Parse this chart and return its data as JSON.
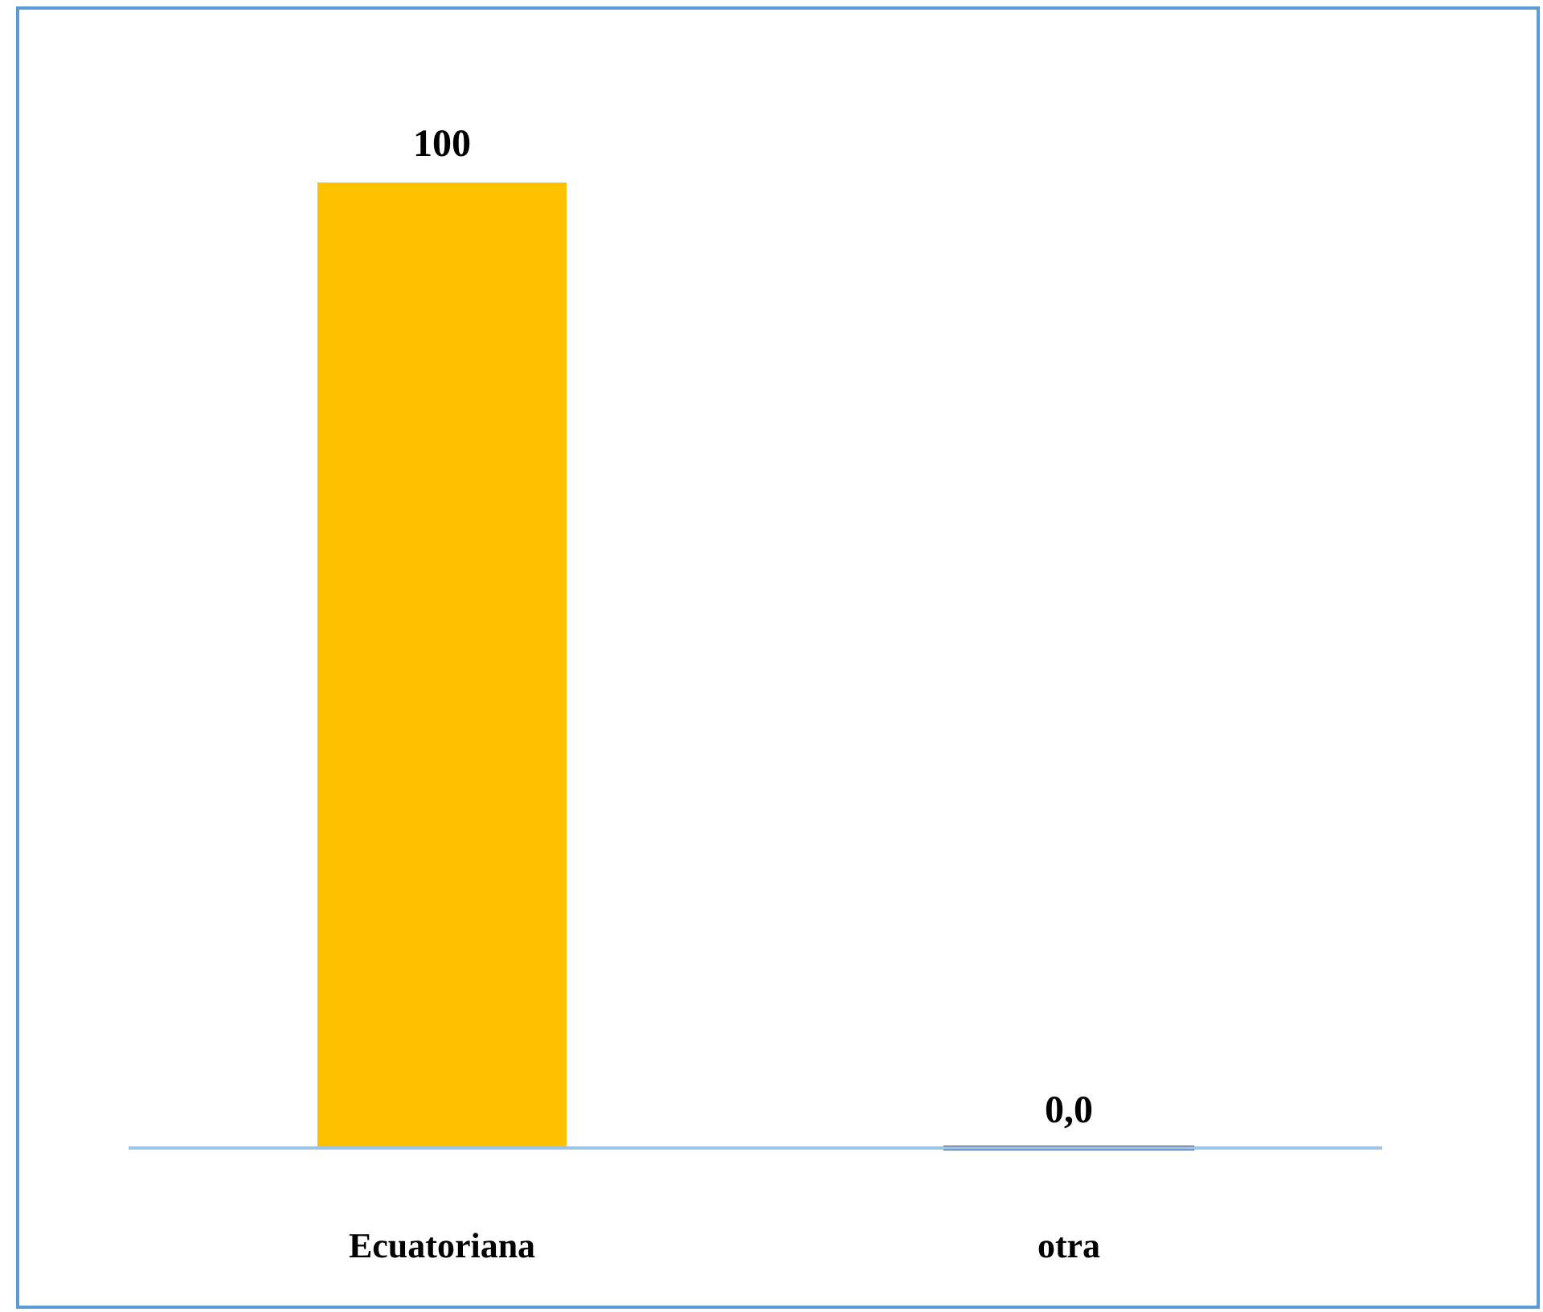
{
  "chart_data": {
    "type": "bar",
    "categories": [
      "Ecuatoriana",
      "otra"
    ],
    "values": [
      100,
      0
    ],
    "colors": [
      "#ffc000",
      "#335593"
    ],
    "value_labels": [
      "100",
      "0,0"
    ]
  }
}
